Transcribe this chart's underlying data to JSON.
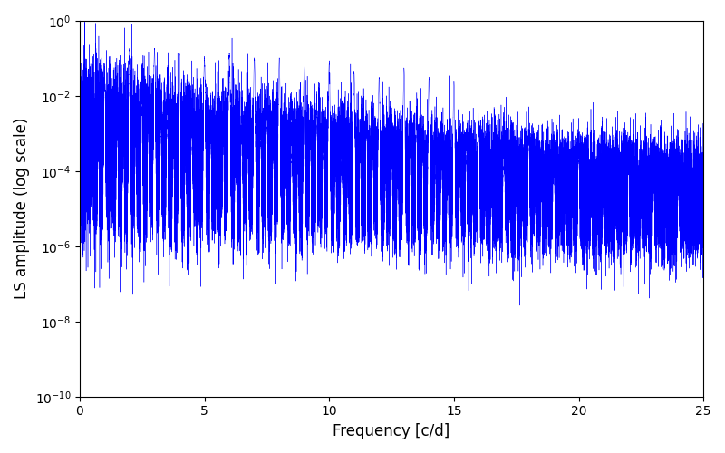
{
  "xlabel": "Frequency [c/d]",
  "ylabel": "LS amplitude (log scale)",
  "xlim": [
    0,
    25
  ],
  "ylim": [
    1e-10,
    1
  ],
  "line_color": "#0000ff",
  "background_color": "#ffffff",
  "figsize": [
    8.0,
    5.0
  ],
  "dpi": 100,
  "seed": 12345
}
